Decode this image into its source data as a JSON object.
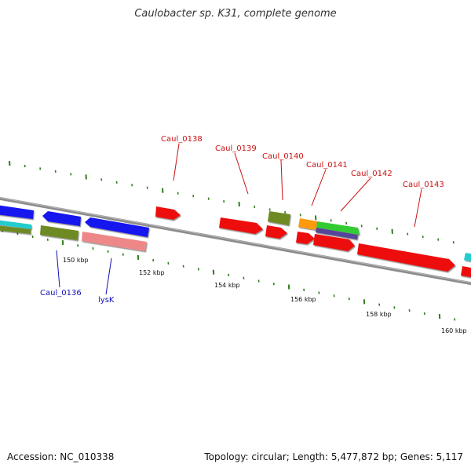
{
  "title": "Caulobacter sp. K31, complete genome",
  "accession": "Accession: NC_010338",
  "info": "Topology: circular; Length: 5,477,872 bp; Genes: 5,117",
  "colors": {
    "backbone": "#8c8c8c",
    "ticks": "#2e7d1c",
    "label_forward": "#cc1111",
    "label_reverse": "#1111bb",
    "red": "#ee1111",
    "blue": "#1515ee",
    "olive": "#6e8a22",
    "cyan": "#22cccc",
    "pink": "#ee8888",
    "orange": "#ff9911",
    "green": "#33cc33",
    "purple": "#554499"
  },
  "scale_labels": [
    "150 kbp",
    "152 kbp",
    "154 kbp",
    "156 kbp",
    "158 kbp",
    "160 kbp"
  ],
  "gene_labels": [
    {
      "name": "Caul_0138",
      "strand": "forward"
    },
    {
      "name": "Caul_0139",
      "strand": "forward"
    },
    {
      "name": "Caul_0140",
      "strand": "forward"
    },
    {
      "name": "Caul_0141",
      "strand": "forward"
    },
    {
      "name": "Caul_0142",
      "strand": "forward"
    },
    {
      "name": "Caul_0143",
      "strand": "forward"
    },
    {
      "name": "Caul_0136",
      "strand": "reverse"
    },
    {
      "name": "lysK",
      "strand": "reverse"
    }
  ]
}
